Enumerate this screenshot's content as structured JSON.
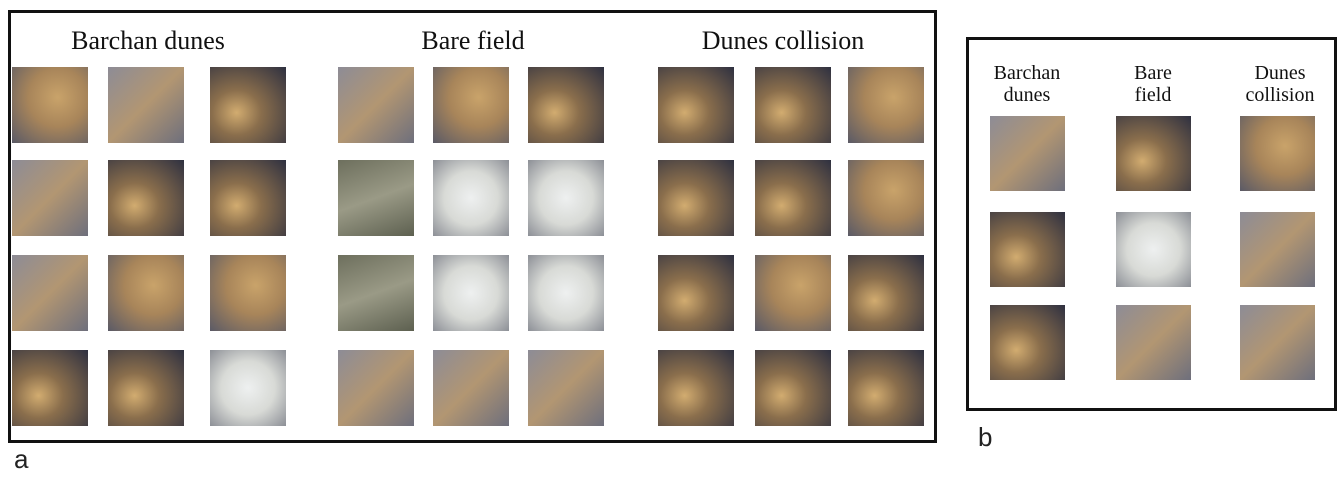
{
  "panel_a": {
    "label": "a",
    "columns": [
      "Barchan dunes",
      "Bare field",
      "Dunes collision"
    ]
  },
  "panel_b": {
    "label": "b",
    "columns": [
      "Barchan dunes",
      "Bare field",
      "Dunes collision"
    ]
  }
}
